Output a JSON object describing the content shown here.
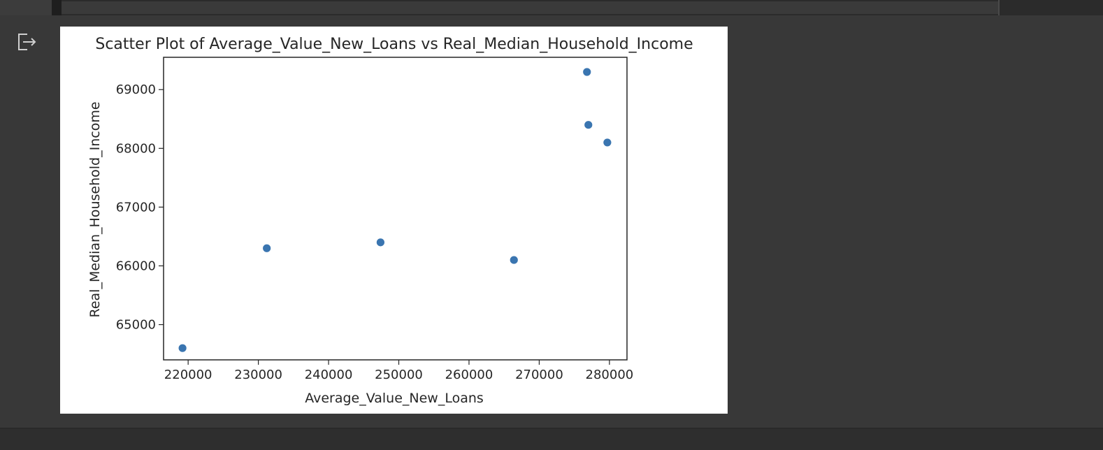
{
  "output": {
    "icon": "output-redirect-icon"
  },
  "chart_data": {
    "type": "scatter",
    "title": "Scatter Plot of Average_Value_New_Loans vs Real_Median_Household_Income",
    "xlabel": "Average_Value_New_Loans",
    "ylabel": "Real_Median_Household_Income",
    "xlim": [
      216500,
      282500
    ],
    "ylim": [
      64400,
      69550
    ],
    "xticks": [
      220000,
      230000,
      240000,
      250000,
      260000,
      270000,
      280000
    ],
    "xtick_labels": [
      "220000",
      "230000",
      "240000",
      "250000",
      "260000",
      "270000",
      "280000"
    ],
    "yticks": [
      65000,
      66000,
      67000,
      68000,
      69000
    ],
    "ytick_labels": [
      "65000",
      "66000",
      "67000",
      "68000",
      "69000"
    ],
    "points": [
      {
        "x": 219200,
        "y": 64600
      },
      {
        "x": 231200,
        "y": 66300
      },
      {
        "x": 247400,
        "y": 66400
      },
      {
        "x": 266400,
        "y": 66100
      },
      {
        "x": 276800,
        "y": 69300
      },
      {
        "x": 277000,
        "y": 68400
      },
      {
        "x": 279700,
        "y": 68100
      }
    ],
    "marker_color": "#3a75b0",
    "grid": false,
    "legend": "none"
  }
}
